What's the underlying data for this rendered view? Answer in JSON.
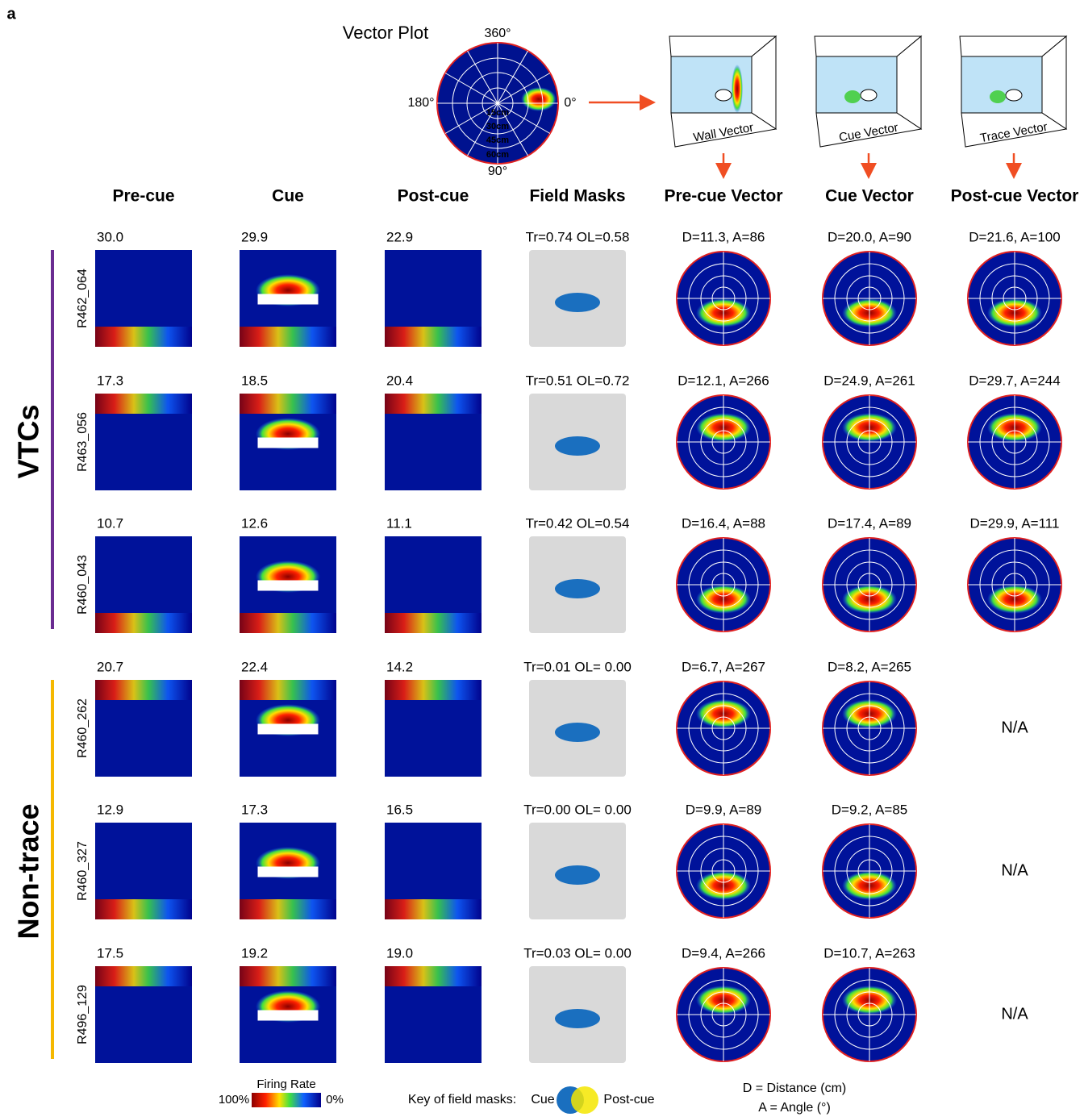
{
  "panel_label": "a",
  "vector_plot": {
    "title": "Vector Plot",
    "angles": [
      "360°",
      "180°",
      "0°",
      "90°"
    ],
    "rings": [
      "15cm",
      "30cm",
      "45cm",
      "60cm"
    ]
  },
  "schematics": [
    "Wall Vector",
    "Cue Vector",
    "Trace Vector"
  ],
  "columns": [
    "Pre-cue",
    "Cue",
    "Post-cue",
    "Field Masks",
    "Pre-cue Vector",
    "Cue Vector",
    "Post-cue Vector"
  ],
  "groups": [
    {
      "label": "VTCs",
      "rows": [
        {
          "id": "R462_064",
          "peaks": [
            "30.0",
            "29.9",
            "22.9"
          ],
          "mask": "Tr=0.74 OL=0.58",
          "vectors": [
            "D=11.3, A=86",
            "D=20.0, A=90",
            "D=21.6, A=100"
          ]
        },
        {
          "id": "R463_056",
          "peaks": [
            "17.3",
            "18.5",
            "20.4"
          ],
          "mask": "Tr=0.51 OL=0.72",
          "vectors": [
            "D=12.1, A=266",
            "D=24.9, A=261",
            "D=29.7, A=244"
          ]
        },
        {
          "id": "R460_043",
          "peaks": [
            "10.7",
            "12.6",
            "11.1"
          ],
          "mask": "Tr=0.42 OL=0.54",
          "vectors": [
            "D=16.4, A=88",
            "D=17.4, A=89",
            "D=29.9, A=111"
          ]
        }
      ]
    },
    {
      "label": "Non-trace",
      "rows": [
        {
          "id": "R460_262",
          "peaks": [
            "20.7",
            "22.4",
            "14.2"
          ],
          "mask": "Tr=0.01 OL= 0.00",
          "vectors": [
            "D=6.7, A=267",
            "D=8.2, A=265",
            "N/A"
          ]
        },
        {
          "id": "R460_327",
          "peaks": [
            "12.9",
            "17.3",
            "16.5"
          ],
          "mask": "Tr=0.00 OL= 0.00",
          "vectors": [
            "D=9.9, A=89",
            "D=9.2, A=85",
            "N/A"
          ]
        },
        {
          "id": "R496_129",
          "peaks": [
            "17.5",
            "19.2",
            "19.0"
          ],
          "mask": "Tr=0.03 OL= 0.00",
          "vectors": [
            "D=9.4, A=266",
            "D=10.7, A=263",
            "N/A"
          ]
        }
      ]
    }
  ],
  "legend": {
    "title": "Firing Rate",
    "max": "100%",
    "min": "0%"
  },
  "mask_key": {
    "label": "Key of  field masks:",
    "cue": "Cue",
    "post": "Post-cue"
  },
  "definitions": [
    "D = Distance (cm)",
    "A = Angle (°)"
  ]
}
